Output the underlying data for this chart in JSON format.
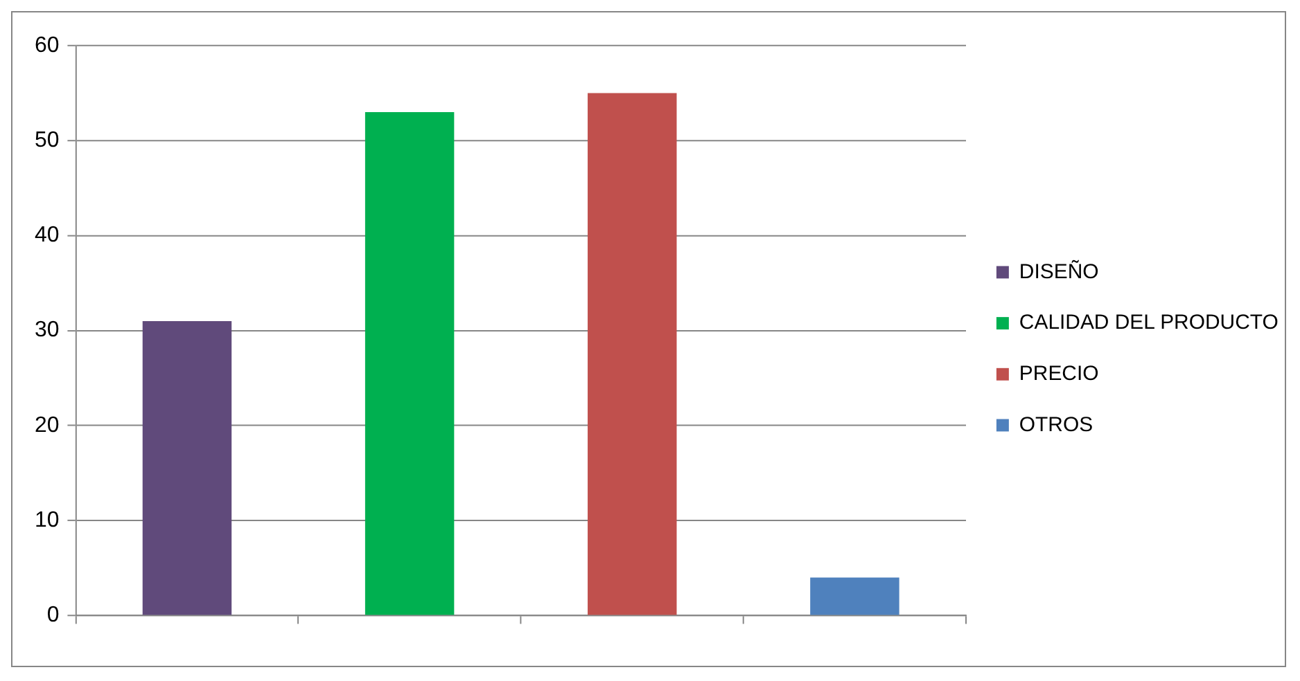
{
  "chart_data": {
    "type": "bar",
    "categories": [
      null,
      null,
      null,
      null
    ],
    "series": [
      {
        "name": "DISEÑO",
        "color": "#604a7b",
        "values": [
          31,
          null,
          null,
          null
        ]
      },
      {
        "name": "CALIDAD DEL PRODUCTO",
        "color": "#00b050",
        "values": [
          null,
          53,
          null,
          null
        ]
      },
      {
        "name": "PRECIO",
        "color": "#c0504d",
        "values": [
          null,
          null,
          55,
          null
        ]
      },
      {
        "name": "OTROS",
        "color": "#4f81bd",
        "values": [
          null,
          null,
          null,
          4
        ]
      }
    ],
    "ylim": [
      0,
      60
    ],
    "yticks": [
      0,
      10,
      20,
      30,
      40,
      50,
      60
    ],
    "grid": "y",
    "legend": "right"
  }
}
